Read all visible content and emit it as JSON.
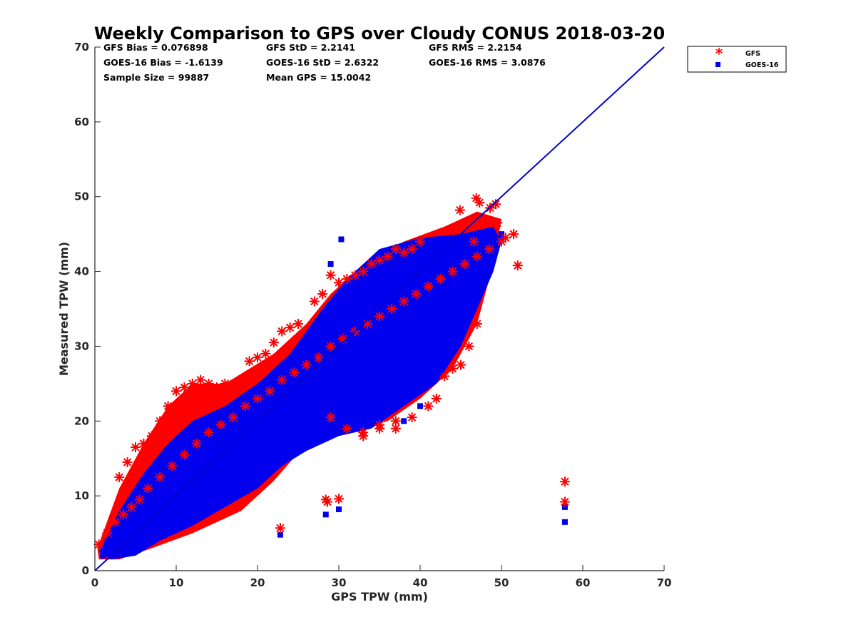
{
  "chart_data": {
    "type": "scatter",
    "title": "Weekly Comparison to GPS over Cloudy CONUS 2018-03-20",
    "xlabel": "GPS TPW (mm)",
    "ylabel": "Measured TPW (mm)",
    "xlim": [
      0,
      70
    ],
    "ylim": [
      0,
      70
    ],
    "xticks": [
      0,
      10,
      20,
      30,
      40,
      50,
      60,
      70
    ],
    "yticks": [
      0,
      10,
      20,
      30,
      40,
      50,
      60,
      70
    ],
    "grid": false,
    "legend_position": "outside-top-right",
    "reference_line": {
      "name": "1:1 line",
      "x": [
        0,
        70
      ],
      "y": [
        0,
        70
      ],
      "color": "#0000cc"
    },
    "stats": [
      [
        "GFS Bias = 0.076898",
        "GFS StD = 2.2141",
        "GFS RMS = 2.2154"
      ],
      [
        "GOES-16 Bias = -1.6139",
        "GOES-16 StD = 2.6322",
        "GOES-16 RMS = 3.0876"
      ],
      [
        "Sample Size = 99887",
        "Mean GPS = 15.0042",
        ""
      ]
    ],
    "series": [
      {
        "name": "GFS",
        "marker": "asterisk",
        "color": "#ff0000",
        "x": [
          0.5,
          1.5,
          2.5,
          3.5,
          4.5,
          5.5,
          6.5,
          8,
          9.5,
          11,
          12.5,
          14,
          15.5,
          17,
          18.5,
          20,
          21.5,
          23,
          24.5,
          26,
          27.5,
          29,
          30.5,
          32,
          33.5,
          35,
          36.5,
          38,
          39.5,
          41,
          42.5,
          44,
          45.5,
          47,
          48.5,
          50,
          51.5,
          3,
          4,
          5,
          6,
          7,
          8,
          9,
          10,
          11,
          12,
          13,
          14,
          15,
          16,
          17,
          19,
          20,
          21,
          22,
          23,
          24,
          25,
          27,
          28,
          29,
          30,
          31,
          32,
          33,
          34,
          35,
          36,
          37,
          38,
          39,
          40,
          33,
          35,
          37,
          39,
          41,
          42,
          43,
          44,
          45,
          46,
          47,
          29,
          31,
          33,
          35,
          37,
          22.8,
          28.4,
          28.6,
          30,
          57.8,
          57.8,
          46.9,
          47.3,
          44.2,
          49.5,
          50.5,
          52,
          48.6,
          49.3,
          44.9,
          46.6
        ],
        "y": [
          3.5,
          5,
          6.5,
          7.5,
          8.5,
          9.5,
          11,
          12.5,
          14,
          15.5,
          17,
          18.5,
          19.5,
          20.5,
          22,
          23,
          24,
          25.5,
          26.5,
          27.5,
          28.5,
          30,
          31,
          32,
          33,
          34,
          35,
          36,
          37,
          38,
          39,
          40,
          41,
          42,
          43,
          44,
          45,
          12.5,
          14.5,
          16.5,
          17,
          18,
          20,
          22,
          24,
          24.5,
          25,
          25.5,
          25,
          24.5,
          25,
          24.5,
          28,
          28.5,
          29,
          30.5,
          32,
          32.5,
          33,
          36,
          37,
          39.5,
          38.5,
          39,
          39.5,
          40,
          41,
          41.5,
          42,
          43,
          42.5,
          43,
          44,
          18,
          19,
          20,
          20.5,
          22,
          23,
          26,
          27,
          27.5,
          30,
          33,
          20.5,
          19,
          18.5,
          19.5,
          19,
          5.7,
          9.5,
          9.2,
          9.6,
          11.9,
          9.2,
          49.8,
          49.2,
          45.5,
          46.5,
          44.5,
          40.8,
          48.5,
          49.0,
          48.2,
          44.0
        ]
      },
      {
        "name": "GOES-16",
        "marker": "square",
        "color": "#0000ee",
        "x": [
          1,
          2,
          3,
          4,
          5,
          6,
          7,
          8,
          9,
          10,
          11,
          12,
          13,
          14,
          15,
          16,
          17,
          18,
          19,
          20,
          21,
          22,
          23,
          24,
          25,
          26,
          27,
          28,
          29,
          30,
          31,
          32,
          33,
          34,
          35,
          36,
          37,
          38,
          39,
          40,
          41,
          42,
          43,
          44,
          45,
          46,
          47,
          48,
          49,
          50,
          22.8,
          28.4,
          30,
          57.8,
          57.8,
          30.3,
          38,
          40,
          47.3,
          50,
          29,
          27.5
        ],
        "y": [
          2,
          2.5,
          3.5,
          4,
          5,
          6,
          6.5,
          7.5,
          8.5,
          9.5,
          10.5,
          11,
          12,
          13,
          14,
          15,
          16,
          17,
          17.5,
          18.5,
          19.5,
          20.5,
          21.5,
          22.5,
          23.5,
          24.5,
          25.5,
          26.5,
          27.5,
          28,
          29,
          30,
          30.5,
          31.5,
          32.5,
          33.5,
          34,
          35,
          35.5,
          36.5,
          37.5,
          38,
          38.5,
          39.5,
          40.5,
          41,
          42,
          42.5,
          43.5,
          44.5,
          4.8,
          7.5,
          8.2,
          8.5,
          6.5,
          44.3,
          20,
          22,
          44.5,
          45,
          41,
          32
        ]
      }
    ]
  },
  "legend": [
    {
      "label": "GFS",
      "symbol": "*",
      "color": "#ff0000"
    },
    {
      "label": "GOES-16",
      "symbol": "■",
      "color": "#0000ee"
    }
  ]
}
